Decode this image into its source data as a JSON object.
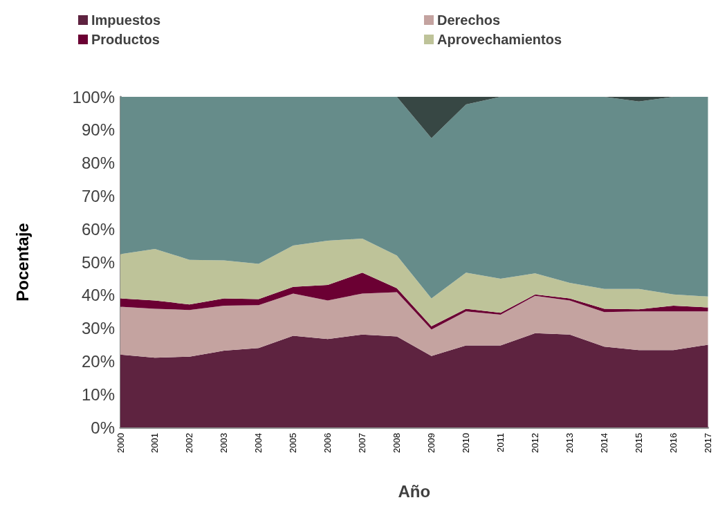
{
  "chart_data": {
    "type": "area",
    "stacked": true,
    "xlabel": "Año",
    "ylabel": "Pocentaje",
    "categories": [
      "2000",
      "2001",
      "2002",
      "2003",
      "2004",
      "2005",
      "2006",
      "2007",
      "2008",
      "2009",
      "2010",
      "2011",
      "2012",
      "2013",
      "2014",
      "2015",
      "2016",
      "2017"
    ],
    "series": [
      {
        "name": "Impuestos",
        "color": "#5e2340",
        "values": [
          22.0,
          21.1,
          21.4,
          23.2,
          24.0,
          27.7,
          26.7,
          28.1,
          27.5,
          21.6,
          24.8,
          24.8,
          28.5,
          28.1,
          24.4,
          23.4,
          23.4,
          25.0
        ]
      },
      {
        "name": "Derechos",
        "color": "#c4a3a0",
        "values": [
          14.5,
          14.8,
          14.1,
          13.6,
          13.0,
          12.8,
          11.7,
          12.4,
          13.4,
          8.0,
          10.3,
          9.3,
          11.3,
          10.3,
          10.5,
          11.7,
          11.7,
          10.1
        ]
      },
      {
        "name": "Productos",
        "color": "#6b0033",
        "values": [
          2.5,
          2.5,
          1.7,
          2.2,
          1.8,
          2.0,
          4.7,
          6.3,
          1.2,
          1.0,
          0.8,
          0.6,
          0.4,
          0.6,
          1.0,
          0.6,
          1.7,
          1.2
        ]
      },
      {
        "name": "Aprovechamientos",
        "color": "#bec399",
        "values": [
          13.4,
          15.6,
          13.5,
          11.5,
          10.7,
          12.5,
          13.4,
          10.3,
          9.9,
          8.4,
          10.9,
          10.3,
          6.4,
          4.7,
          6.0,
          6.2,
          3.4,
          3.3
        ]
      },
      {
        "color": "#668c8a",
        "values": [
          47.6,
          46.0,
          49.3,
          49.5,
          50.5,
          45.0,
          43.5,
          42.9,
          48.0,
          48.5,
          50.9,
          55.0,
          53.4,
          56.3,
          58.1,
          56.7,
          59.8,
          60.4
        ]
      },
      {
        "color": "#374744",
        "values": [
          0,
          0,
          0,
          0,
          0,
          0,
          0,
          0,
          0,
          12.5,
          2.3,
          0,
          0,
          0,
          0,
          1.4,
          0,
          0
        ]
      }
    ],
    "ylim": [
      0,
      100
    ],
    "yticks": [
      {
        "value": 0,
        "label": "0%"
      },
      {
        "value": 10,
        "label": "10%"
      },
      {
        "value": 20,
        "label": "20%"
      },
      {
        "value": 30,
        "label": "30%"
      },
      {
        "value": 40,
        "label": "40%"
      },
      {
        "value": 50,
        "label": "50%"
      },
      {
        "value": 60,
        "label": "60%"
      },
      {
        "value": 70,
        "label": "70%"
      },
      {
        "value": 80,
        "label": "80%"
      },
      {
        "value": 90,
        "label": "90%"
      },
      {
        "value": 100,
        "label": "100%"
      }
    ],
    "legend": "top"
  }
}
